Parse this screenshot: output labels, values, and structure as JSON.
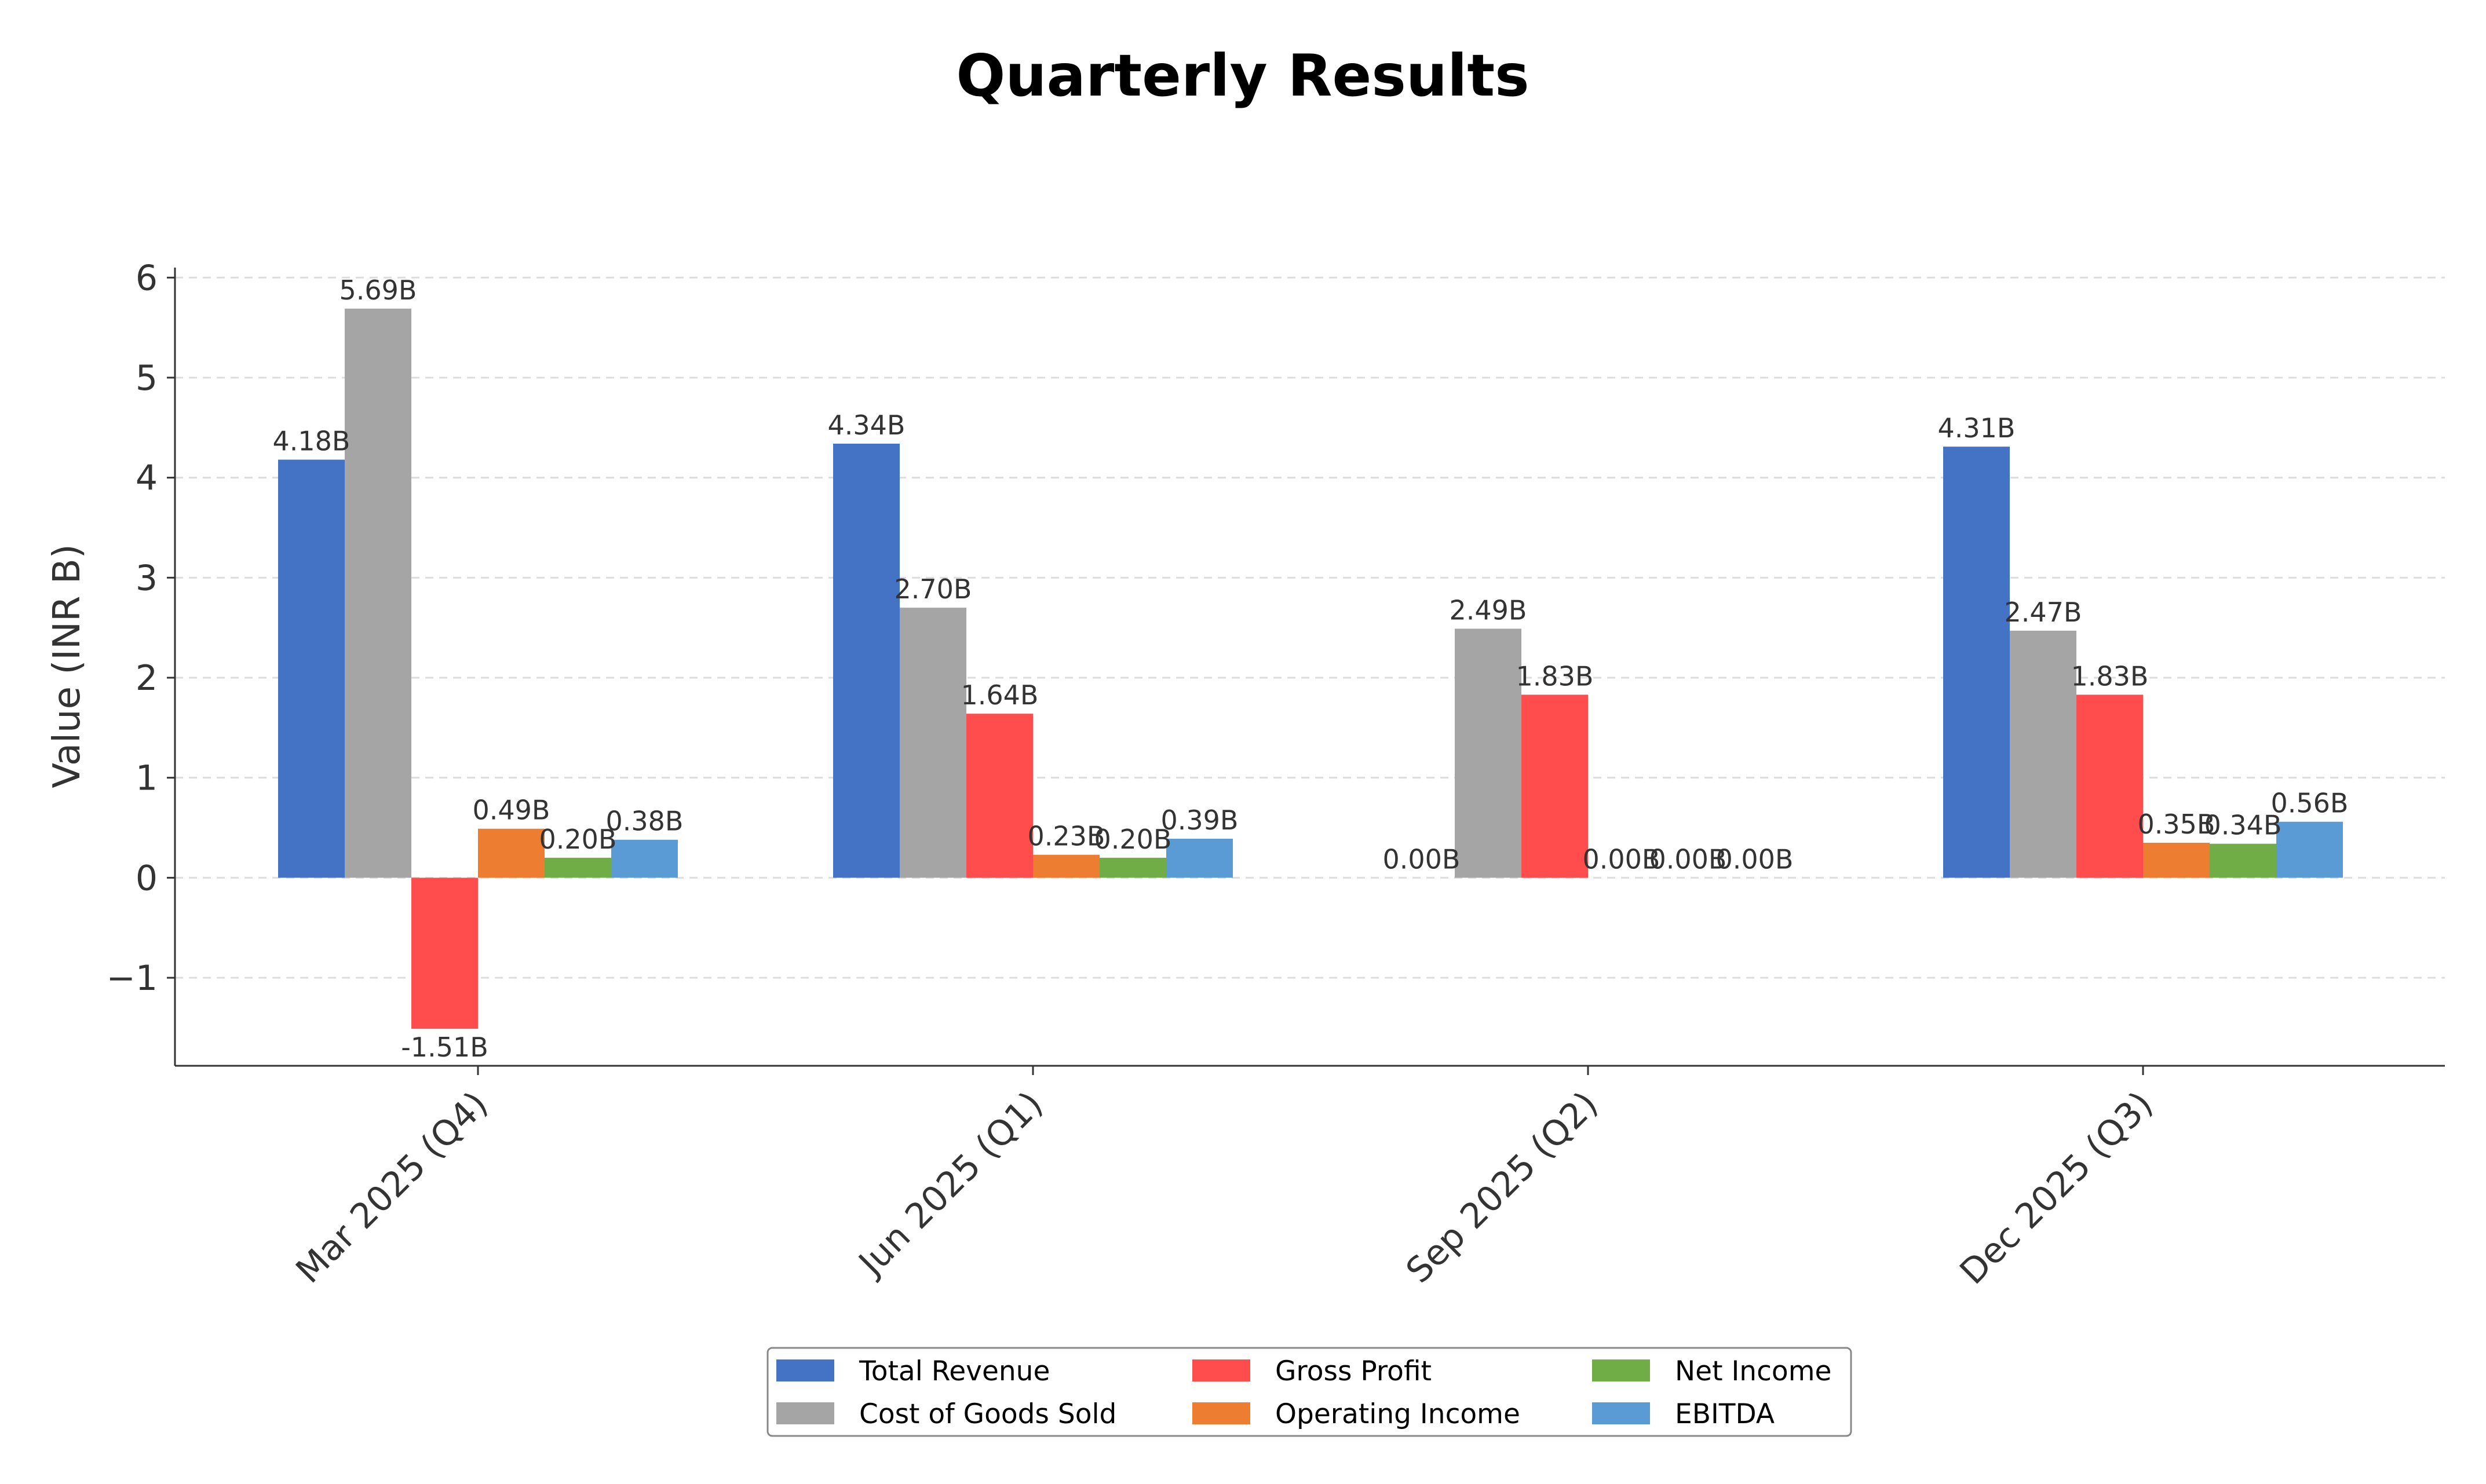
{
  "chart_data": {
    "type": "bar",
    "title": "Quarterly Results",
    "xlabel": "",
    "ylabel": "Value (INR B)",
    "ylim": [
      -1.88,
      6.1
    ],
    "yticks": [
      -1,
      0,
      1,
      2,
      3,
      4,
      5,
      6
    ],
    "ytick_labels": [
      "−1",
      "0",
      "1",
      "2",
      "3",
      "4",
      "5",
      "6"
    ],
    "grid": "y-dashed",
    "legend_placement": "bottom-center",
    "categories": [
      "Mar 2025 (Q4)",
      "Jun 2025 (Q1)",
      "Sep 2025 (Q2)",
      "Dec 2025 (Q3)"
    ],
    "series": [
      {
        "name": "Total Revenue",
        "color": "#4472C4",
        "values": [
          4.18,
          4.34,
          0.0,
          4.31
        ],
        "labels": [
          "4.18B",
          "4.34B",
          "0.00B",
          "4.31B"
        ]
      },
      {
        "name": "Cost of Goods Sold",
        "color": "#A5A5A5",
        "values": [
          5.69,
          2.7,
          2.49,
          2.47
        ],
        "labels": [
          "5.69B",
          "2.70B",
          "2.49B",
          "2.47B"
        ]
      },
      {
        "name": "Gross Profit",
        "color": "#FF4C4C",
        "values": [
          -1.51,
          1.64,
          1.83,
          1.83
        ],
        "labels": [
          "-1.51B",
          "1.64B",
          "1.83B",
          "1.83B"
        ]
      },
      {
        "name": "Operating Income",
        "color": "#ED7D31",
        "values": [
          0.49,
          0.23,
          0.0,
          0.35
        ],
        "labels": [
          "0.49B",
          "0.23B",
          "0.00B",
          "0.35B"
        ]
      },
      {
        "name": "Net Income",
        "color": "#70AD47",
        "values": [
          0.2,
          0.2,
          0.0,
          0.34
        ],
        "labels": [
          "0.20B",
          "0.20B",
          "0.00B",
          "0.34B"
        ]
      },
      {
        "name": "EBITDA",
        "color": "#5B9BD5",
        "values": [
          0.38,
          0.39,
          0.0,
          0.56
        ],
        "labels": [
          "0.38B",
          "0.39B",
          "0.00B",
          "0.56B"
        ]
      }
    ]
  }
}
